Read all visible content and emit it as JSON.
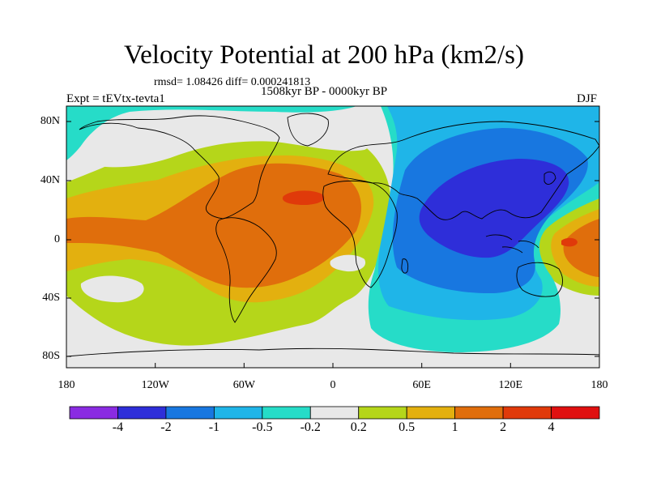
{
  "title": "Velocity Potential at 200 hPa (km2/s)",
  "stats_line": "rmsd= 1.08426 diff= 0.000241813",
  "period": "1508kyr BP - 0000kyr BP",
  "experiment": "Expt = tEVtx-tevta1",
  "season": "DJF",
  "latitude_ticks": [
    "80N",
    "40N",
    "0",
    "40S",
    "80S"
  ],
  "longitude_ticks": [
    "180",
    "120W",
    "60W",
    "0",
    "60E",
    "120E",
    "180"
  ],
  "colorbar": {
    "labels": [
      "-4",
      "-2",
      "-1",
      "-0.5",
      "-0.2",
      "0.2",
      "0.5",
      "1",
      "2",
      "4"
    ],
    "colors": [
      "#8a2be2",
      "#2e2ed9",
      "#1877e0",
      "#1fb5e8",
      "#26dcc8",
      "#e8e8e8",
      "#b5d61a",
      "#e3b00f",
      "#e06e0c",
      "#e03a0a",
      "#e01010"
    ]
  },
  "field_colors": {
    "neutral": "#e8e8e8",
    "pos_weak": "#b5d61a",
    "pos_mid": "#e3b00f",
    "pos_strong": "#e06e0c",
    "pos_max": "#e03a0a",
    "neg_weak": "#26dcc8",
    "neg_mid": "#1fb5e8",
    "neg_strong": "#1877e0",
    "neg_max": "#2e2ed9"
  }
}
